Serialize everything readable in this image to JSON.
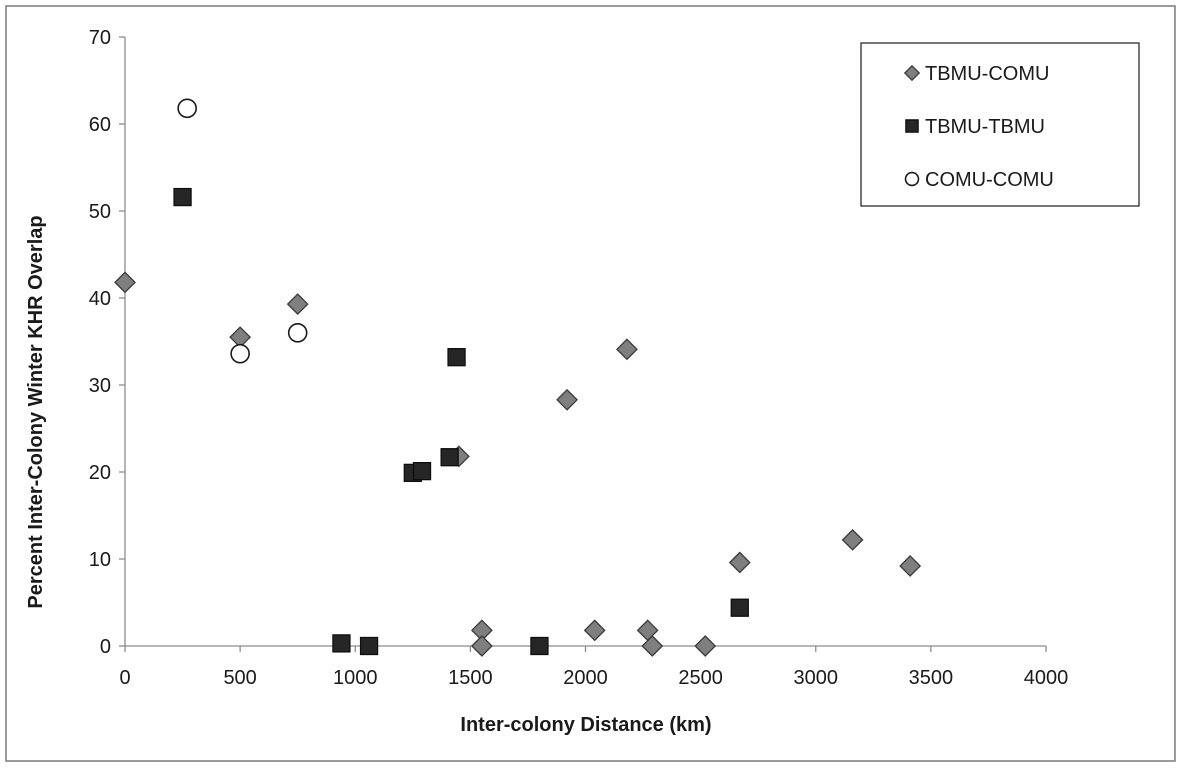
{
  "chart_data": {
    "type": "scatter",
    "title": "",
    "xlabel": "Inter-colony Distance (km)",
    "ylabel": "Percent Inter-Colony Winter KHR Overlap",
    "xlim": [
      0,
      4000
    ],
    "ylim": [
      0,
      70
    ],
    "xticks": [
      "0",
      "500",
      "1000",
      "1500",
      "2000",
      "2500",
      "3000",
      "3500",
      "4000"
    ],
    "yticks": [
      "0",
      "10",
      "20",
      "30",
      "40",
      "50",
      "60",
      "70"
    ],
    "grid": false,
    "legend_position": "top-right",
    "series": [
      {
        "name": "TBMU-COMU",
        "marker": "diamond",
        "color": "#7f7f7f",
        "points": [
          [
            0,
            41.8
          ],
          [
            500,
            35.5
          ],
          [
            750,
            39.3
          ],
          [
            1450,
            21.8
          ],
          [
            1550,
            1.8
          ],
          [
            1550,
            0
          ],
          [
            1920,
            28.3
          ],
          [
            2040,
            1.8
          ],
          [
            2180,
            34.1
          ],
          [
            2270,
            1.8
          ],
          [
            2290,
            0
          ],
          [
            2520,
            0
          ],
          [
            2670,
            9.6
          ],
          [
            3160,
            12.2
          ],
          [
            3410,
            9.2
          ]
        ]
      },
      {
        "name": "TBMU-TBMU",
        "marker": "square",
        "color": "#262626",
        "points": [
          [
            250,
            51.6
          ],
          [
            940,
            0.3
          ],
          [
            1060,
            0
          ],
          [
            1250,
            19.9
          ],
          [
            1290,
            20.1
          ],
          [
            1410,
            21.7
          ],
          [
            1440,
            33.2
          ],
          [
            1800,
            0
          ],
          [
            2670,
            4.4
          ]
        ]
      },
      {
        "name": "COMU-COMU",
        "marker": "circle",
        "color": "#ffffff",
        "points": [
          [
            270,
            61.8
          ],
          [
            500,
            33.6
          ],
          [
            750,
            36.0
          ]
        ]
      }
    ]
  }
}
